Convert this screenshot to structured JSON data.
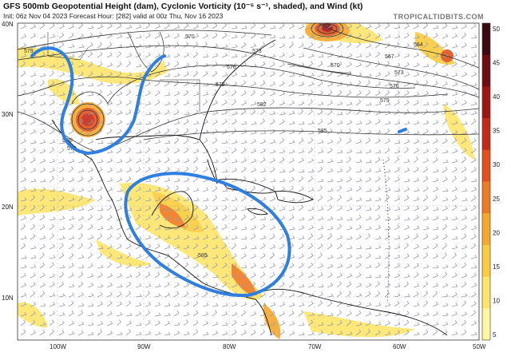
{
  "header": {
    "title": "GFS 500mb Geopotential Height (dam), Cyclonic Vorticity (10⁻⁵ s⁻¹, shaded), and Wind (kt)",
    "subtitle": "Init: 06z Nov 04 2023   Forecast Hour: [282]   valid at 00z Thu, Nov 16 2023",
    "brand": "TROPICALTIDBITS.COM"
  },
  "map": {
    "lat_labels": [
      "40N",
      "30N",
      "20N",
      "10N"
    ],
    "lon_labels": [
      "100W",
      "90W",
      "80W",
      "70W",
      "60W",
      "50W"
    ],
    "height_contour_labels": [
      "570",
      "573",
      "576",
      "579",
      "582",
      "585",
      "564",
      "567",
      "570",
      "573",
      "576",
      "579",
      "579",
      "570",
      "576",
      "579",
      "585"
    ],
    "annotation_color": "#2f7fe0"
  },
  "colorbar": {
    "ticks": [
      "50",
      "45",
      "40",
      "35",
      "30",
      "25",
      "20",
      "15",
      "10",
      "5"
    ],
    "colors": [
      "#fff6a0",
      "#fde56a",
      "#f9cb3d",
      "#f6a82d",
      "#f07a22",
      "#e2501c",
      "#c42a18",
      "#9e1614",
      "#6e0e12",
      "#3a0a10"
    ]
  }
}
